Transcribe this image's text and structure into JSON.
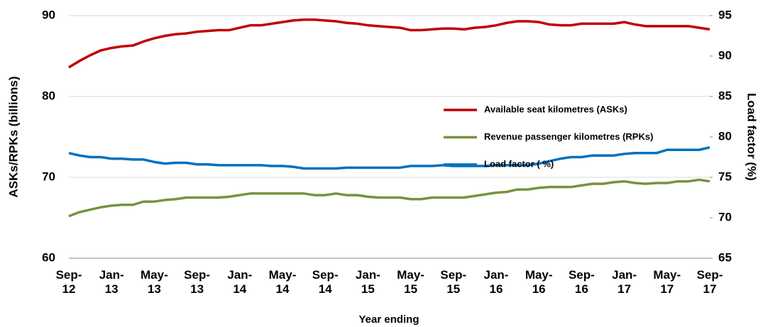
{
  "chart_data": {
    "type": "line",
    "x_label": "Year ending",
    "y_label": "ASKs/RPKs (billions)",
    "y2_label": "Load factor (%)",
    "categories": [
      "Sep-\n12",
      null,
      null,
      null,
      "Jan-\n13",
      null,
      null,
      null,
      "May-\n13",
      null,
      null,
      null,
      "Sep-\n13",
      null,
      null,
      null,
      "Jan-\n14",
      null,
      null,
      null,
      "May-\n14",
      null,
      null,
      null,
      "Sep-\n14",
      null,
      null,
      null,
      "Jan-\n15",
      null,
      null,
      null,
      "May-\n15",
      null,
      null,
      null,
      "Sep-\n15",
      null,
      null,
      null,
      "Jan-\n16",
      null,
      null,
      null,
      "May-\n16",
      null,
      null,
      null,
      "Sep-\n16",
      null,
      null,
      null,
      "Jan-\n17",
      null,
      null,
      null,
      "May-\n17",
      null,
      null,
      null,
      "Sep-\n17"
    ],
    "series": [
      {
        "name": "Available seat kilometres (ASKs)",
        "color": "#c00000",
        "values": [
          83.6,
          84.4,
          85.1,
          85.7,
          86.0,
          86.2,
          86.3,
          86.8,
          87.2,
          87.5,
          87.7,
          87.8,
          88.0,
          88.1,
          88.2,
          88.2,
          88.5,
          88.8,
          88.8,
          89.0,
          89.2,
          89.4,
          89.5,
          89.5,
          89.4,
          89.3,
          89.1,
          89.0,
          88.8,
          88.7,
          88.6,
          88.5,
          88.2,
          88.2,
          88.3,
          88.4,
          88.4,
          88.3,
          88.5,
          88.6,
          88.8,
          89.1,
          89.3,
          89.3,
          89.2,
          88.9,
          88.8,
          88.8,
          89.0,
          89.0,
          89.0,
          89.0,
          89.2,
          88.9,
          88.7,
          88.7,
          88.7,
          88.7,
          88.7,
          88.5,
          88.3
        ]
      },
      {
        "name": "Revenue passenger kilometres (RPKs)",
        "color": "#77933c",
        "values": [
          65.2,
          65.7,
          66.0,
          66.3,
          66.5,
          66.6,
          66.6,
          67.0,
          67.0,
          67.2,
          67.3,
          67.5,
          67.5,
          67.5,
          67.5,
          67.6,
          67.8,
          68.0,
          68.0,
          68.0,
          68.0,
          68.0,
          68.0,
          67.8,
          67.8,
          68.0,
          67.8,
          67.8,
          67.6,
          67.5,
          67.5,
          67.5,
          67.3,
          67.3,
          67.5,
          67.5,
          67.5,
          67.5,
          67.7,
          67.9,
          68.1,
          68.2,
          68.5,
          68.5,
          68.7,
          68.8,
          68.8,
          68.8,
          69.0,
          69.2,
          69.2,
          69.4,
          69.5,
          69.3,
          69.2,
          69.3,
          69.3,
          69.5,
          69.5,
          69.7,
          69.5
        ]
      },
      {
        "name": "Load factor ( %)",
        "color": "#0070c0",
        "axis": "y2",
        "values": [
          78.0,
          77.7,
          77.5,
          77.5,
          77.3,
          77.3,
          77.2,
          77.2,
          76.9,
          76.7,
          76.8,
          76.8,
          76.6,
          76.6,
          76.5,
          76.5,
          76.5,
          76.5,
          76.5,
          76.4,
          76.4,
          76.3,
          76.1,
          76.1,
          76.1,
          76.1,
          76.2,
          76.2,
          76.2,
          76.2,
          76.2,
          76.2,
          76.4,
          76.4,
          76.4,
          76.5,
          76.4,
          76.4,
          76.4,
          76.4,
          76.5,
          76.5,
          76.5,
          76.5,
          76.7,
          77.0,
          77.3,
          77.5,
          77.5,
          77.7,
          77.7,
          77.7,
          77.9,
          78.0,
          78.0,
          78.0,
          78.4,
          78.4,
          78.4,
          78.4,
          78.7
        ]
      }
    ],
    "ylim": [
      60,
      90
    ],
    "yticks": [
      60,
      70,
      80,
      90
    ],
    "y2lim": [
      65,
      95
    ],
    "y2ticks": [
      65,
      70,
      75,
      80,
      85,
      90,
      95
    ],
    "grid": true
  }
}
